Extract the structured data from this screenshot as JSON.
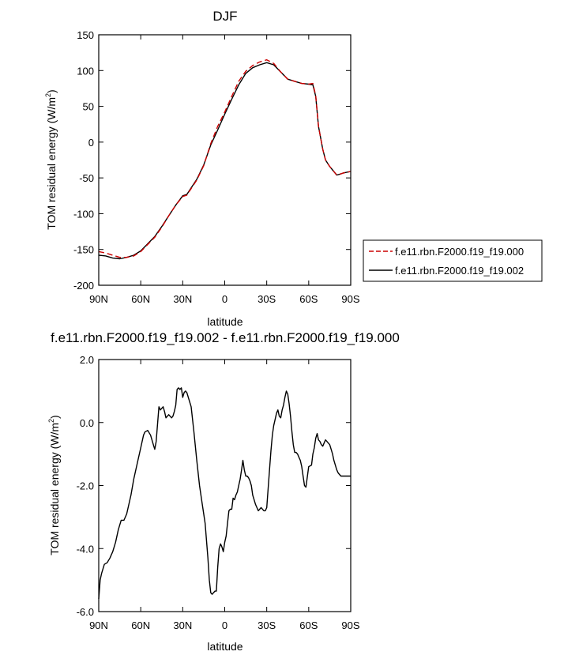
{
  "chart_data": [
    {
      "type": "line",
      "title": "DJF",
      "xlabel": "latitude",
      "ylabel": "TOM residual energy (W/m²)",
      "ylabel_main": "TOM residual energy (W/m",
      "ylabel_sup": "2",
      "ylabel_close": ")",
      "xlim": [
        -90,
        90
      ],
      "ylim": [
        -200,
        150
      ],
      "xticks": [
        -90,
        -60,
        -30,
        0,
        30,
        60,
        90
      ],
      "xtick_labels": [
        "90N",
        "60N",
        "30N",
        "0",
        "30S",
        "60S",
        "90S"
      ],
      "yticks": [
        -200,
        -150,
        -100,
        -50,
        0,
        50,
        100,
        150
      ],
      "ytick_labels": [
        "-200",
        "-150",
        "-100",
        "-50",
        "0",
        "50",
        "100",
        "150"
      ],
      "grid": false,
      "legend_position": "right",
      "series": [
        {
          "name": "f.e11.rbn.F2000.f19_f19.000",
          "color": "#cc0000",
          "style": "dashed",
          "x": [
            -90,
            -85,
            -80,
            -75,
            -70,
            -65,
            -60,
            -55,
            -50,
            -45,
            -40,
            -35,
            -30,
            -27,
            -25,
            -20,
            -15,
            -10,
            -5,
            0,
            5,
            10,
            15,
            20,
            25,
            30,
            35,
            40,
            45,
            50,
            55,
            60,
            63,
            65,
            67,
            70,
            72,
            75,
            80,
            82,
            85,
            90
          ],
          "y": [
            -153,
            -155,
            -158,
            -161,
            -161,
            -159,
            -153,
            -143,
            -133,
            -119,
            -103,
            -88,
            -76,
            -74,
            -68,
            -53,
            -33,
            -2,
            22,
            42,
            64,
            85,
            99,
            107,
            112,
            115,
            110,
            98,
            88,
            85,
            82,
            81,
            82,
            65,
            22,
            -10,
            -25,
            -34,
            -46,
            -45,
            -43,
            -41
          ]
        },
        {
          "name": "f.e11.rbn.F2000.f19_f19.002",
          "color": "#000000",
          "style": "solid",
          "x": [
            -90,
            -85,
            -80,
            -75,
            -70,
            -65,
            -60,
            -55,
            -50,
            -45,
            -40,
            -35,
            -30,
            -27,
            -25,
            -20,
            -15,
            -10,
            -5,
            0,
            5,
            10,
            15,
            20,
            25,
            30,
            35,
            40,
            45,
            50,
            55,
            60,
            63,
            65,
            67,
            70,
            72,
            75,
            80,
            82,
            85,
            90
          ],
          "y": [
            -158,
            -159,
            -162,
            -163,
            -161,
            -158,
            -152,
            -142,
            -132,
            -118,
            -103,
            -88,
            -75,
            -73,
            -67,
            -52,
            -32,
            -4,
            17,
            39,
            60,
            80,
            96,
            104,
            108,
            111,
            108,
            98,
            88,
            85,
            82,
            81,
            80,
            64,
            22,
            -10,
            -25,
            -34,
            -46,
            -45,
            -43,
            -41
          ]
        }
      ]
    },
    {
      "type": "line",
      "title": "f.e11.rbn.F2000.f19_f19.002 - f.e11.rbn.F2000.f19_f19.000",
      "xlabel": "latitude",
      "ylabel": "TOM residual energy (W/m²)",
      "ylabel_main": "TOM residual energy (W/m",
      "ylabel_sup": "2",
      "ylabel_close": ")",
      "xlim": [
        -90,
        90
      ],
      "ylim": [
        -6,
        2
      ],
      "xticks": [
        -90,
        -60,
        -30,
        0,
        30,
        60,
        90
      ],
      "xtick_labels": [
        "90N",
        "60N",
        "30N",
        "0",
        "30S",
        "60S",
        "90S"
      ],
      "yticks": [
        -6,
        -4,
        -2,
        0,
        2
      ],
      "ytick_labels": [
        "-6.0",
        "-4.0",
        "-2.0",
        "0.0",
        "2.0"
      ],
      "grid": false,
      "series": [
        {
          "color": "#000000",
          "style": "solid",
          "x": [
            -90,
            -89,
            -88,
            -86,
            -84,
            -82,
            -81,
            -80,
            -78,
            -76,
            -74,
            -72,
            -70,
            -67,
            -65,
            -62,
            -60,
            -58,
            -57,
            -55,
            -53,
            -51,
            -50,
            -49,
            -47,
            -46,
            -44,
            -43,
            -42,
            -41,
            -40,
            -39,
            -38,
            -37,
            -36,
            -35,
            -34,
            -33,
            -32,
            -31,
            -30,
            -29,
            -28,
            -27,
            -26,
            -24,
            -22,
            -20,
            -18,
            -16,
            -14,
            -12,
            -11,
            -10,
            -9,
            -8,
            -7,
            -6,
            -5,
            -4,
            -3,
            -2,
            -1,
            0,
            1,
            2,
            3,
            4,
            5,
            6,
            7,
            8,
            9,
            10,
            11,
            12,
            13,
            14,
            15,
            16,
            17,
            18,
            19,
            20,
            22,
            24,
            26,
            28,
            29,
            30,
            32,
            33,
            34,
            35,
            36,
            37,
            38,
            39,
            40,
            41,
            42,
            43,
            44,
            45,
            46,
            47,
            48,
            49,
            50,
            51,
            52,
            53,
            54,
            55,
            56,
            57,
            58,
            60,
            62,
            63,
            64,
            65,
            66,
            67,
            68,
            69,
            70,
            71,
            72,
            73,
            74,
            75,
            76,
            77,
            78,
            79,
            80,
            81,
            82,
            83,
            84,
            85,
            86,
            87,
            88,
            89,
            90
          ],
          "y": [
            -5.6,
            -5.0,
            -4.8,
            -4.5,
            -4.45,
            -4.3,
            -4.2,
            -4.1,
            -3.8,
            -3.4,
            -3.1,
            -3.1,
            -2.9,
            -2.3,
            -1.8,
            -1.2,
            -0.8,
            -0.4,
            -0.3,
            -0.25,
            -0.4,
            -0.7,
            -0.85,
            -0.6,
            0.5,
            0.4,
            0.5,
            0.35,
            0.15,
            0.2,
            0.25,
            0.2,
            0.15,
            0.2,
            0.35,
            0.55,
            1.05,
            1.1,
            1.05,
            1.1,
            0.8,
            0.95,
            1.0,
            0.95,
            0.8,
            0.5,
            -0.3,
            -1.2,
            -2.0,
            -2.6,
            -3.2,
            -4.3,
            -5.0,
            -5.4,
            -5.45,
            -5.4,
            -5.35,
            -5.35,
            -4.6,
            -4.0,
            -3.85,
            -3.95,
            -4.1,
            -3.8,
            -3.6,
            -3.2,
            -2.8,
            -2.75,
            -2.75,
            -2.4,
            -2.45,
            -2.3,
            -2.2,
            -2.0,
            -1.8,
            -1.5,
            -1.2,
            -1.5,
            -1.7,
            -1.7,
            -1.75,
            -1.85,
            -2.0,
            -2.3,
            -2.6,
            -2.8,
            -2.7,
            -2.8,
            -2.8,
            -2.7,
            -1.5,
            -0.9,
            -0.4,
            -0.1,
            0.1,
            0.3,
            0.4,
            0.2,
            0.15,
            0.4,
            0.55,
            0.8,
            1.0,
            0.9,
            0.6,
            0.2,
            -0.3,
            -0.7,
            -0.95,
            -0.95,
            -1.0,
            -1.1,
            -1.2,
            -1.4,
            -1.7,
            -2.0,
            -2.05,
            -1.4,
            -1.35,
            -1.0,
            -0.8,
            -0.5,
            -0.35,
            -0.55,
            -0.6,
            -0.7,
            -0.75,
            -0.65,
            -0.55,
            -0.6,
            -0.65,
            -0.7,
            -0.85,
            -1.0,
            -1.2,
            -1.35,
            -1.5,
            -1.6,
            -1.65,
            -1.7,
            -1.7,
            -1.7,
            -1.7,
            -1.7,
            -1.7,
            -1.7,
            -1.7
          ]
        }
      ]
    }
  ]
}
